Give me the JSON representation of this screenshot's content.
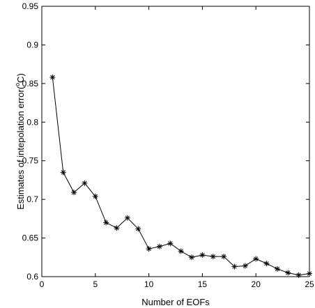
{
  "chart_data": {
    "type": "line",
    "title": "",
    "xlabel": "Number of EOFs",
    "ylabel_prefix": "Estimates of intepolation error(",
    "ylabel_sup": "o",
    "ylabel_suffix": "C)",
    "xlim": [
      0,
      25
    ],
    "ylim": [
      0.6,
      0.95
    ],
    "xticks": [
      0,
      5,
      10,
      15,
      20,
      25
    ],
    "yticks": [
      0.6,
      0.65,
      0.7,
      0.75,
      0.8,
      0.85,
      0.9,
      0.95
    ],
    "xtick_labels": [
      "0",
      "5",
      "10",
      "15",
      "20",
      "25"
    ],
    "ytick_labels": [
      "0.6",
      "0.65",
      "0.7",
      "0.75",
      "0.8",
      "0.85",
      "0.9",
      "0.95"
    ],
    "marker": "asterisk",
    "line_color": "#000000",
    "series": [
      {
        "x": [
          1,
          2,
          3,
          4,
          5,
          6,
          7,
          8,
          9,
          10,
          11,
          12,
          13,
          14,
          15,
          16,
          17,
          18,
          19,
          20,
          21,
          22,
          23,
          24,
          25
        ],
        "values": [
          0.858,
          0.735,
          0.709,
          0.721,
          0.704,
          0.67,
          0.663,
          0.676,
          0.662,
          0.636,
          0.639,
          0.643,
          0.633,
          0.625,
          0.628,
          0.626,
          0.626,
          0.613,
          0.614,
          0.623,
          0.617,
          0.61,
          0.605,
          0.602,
          0.604
        ]
      }
    ]
  }
}
